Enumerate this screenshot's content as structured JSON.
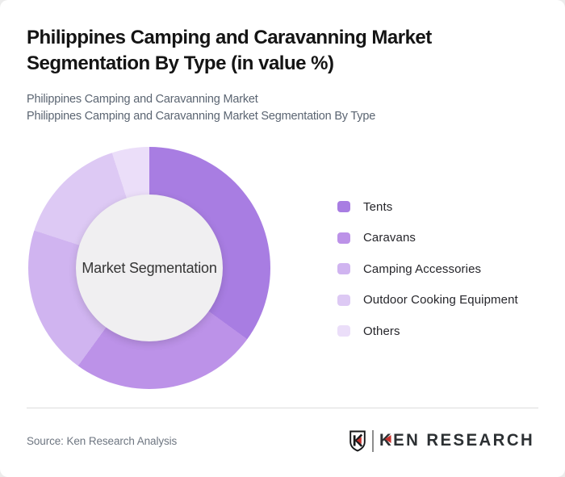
{
  "header": {
    "title": "Philippines Camping and Caravanning Market Segmentation By Type (in value %)",
    "subtitle_line1": "Philippines Camping and Caravanning Market",
    "subtitle_line2": "Philippines Camping and Caravanning Market Segmentation By Type"
  },
  "chart_data": {
    "type": "pie",
    "variant": "donut",
    "title": "Philippines Camping and Caravanning Market Segmentation By Type (in value %)",
    "unit": "value %",
    "center_label": "Market Segmentation",
    "legend_position": "right",
    "direction": "clockwise",
    "start_angle_deg": 0,
    "categories": [
      "Tents",
      "Caravans",
      "Camping Accessories",
      "Outdoor Cooking Equipment",
      "Others"
    ],
    "values": [
      35,
      25,
      20,
      15,
      5
    ],
    "colors": [
      "#a87de2",
      "#bc92e8",
      "#d0b4f0",
      "#ddc9f4",
      "#ebdef9"
    ],
    "hole_color": "#f0eff1"
  },
  "footer": {
    "source": "Source: Ken Research Analysis",
    "logo": {
      "shield_letter": "K",
      "brand_k": "K",
      "brand_rest": "EN RESEARCH",
      "accent_color": "#c6322e",
      "text_color": "#2c3033"
    }
  }
}
